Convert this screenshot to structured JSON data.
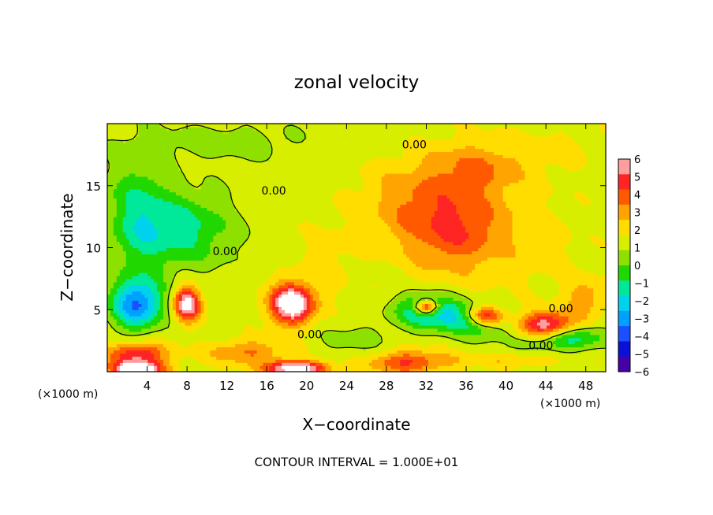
{
  "chart_data": {
    "type": "heatmap",
    "title": "zonal velocity",
    "xlabel": "X−coordinate",
    "ylabel": "Z−coordinate",
    "x_unit": "(×1000 m)",
    "z_unit": "(×1000 m)",
    "xlim": [
      0,
      50
    ],
    "zlim": [
      0,
      20
    ],
    "x_ticks": [
      4,
      8,
      12,
      16,
      20,
      24,
      28,
      32,
      36,
      40,
      44,
      48
    ],
    "z_ticks": [
      5,
      10,
      15
    ],
    "colorbar": {
      "ticks": [
        "6",
        "5",
        "4",
        "3",
        "2",
        "1",
        "0",
        "−1",
        "−2",
        "−3",
        "−4",
        "−5",
        "−6"
      ],
      "colors": [
        "#ff9e9e",
        "#ff2525",
        "#ff5a00",
        "#ffa400",
        "#ffdd00",
        "#d8ee00",
        "#8ee000",
        "#20d800",
        "#00e89a",
        "#00d2ee",
        "#00a0ff",
        "#1a50ff",
        "#0a10d8",
        "#4500a8"
      ]
    },
    "contour_labels": [
      {
        "text": "0.00",
        "x": 30.8,
        "z": 18.0
      },
      {
        "text": "0.00",
        "x": 16.7,
        "z": 14.3
      },
      {
        "text": "0.00",
        "x": 11.8,
        "z": 9.4
      },
      {
        "text": "0.00",
        "x": 20.3,
        "z": 2.7
      },
      {
        "text": "0.00",
        "x": 45.5,
        "z": 4.8
      },
      {
        "text": "0.00",
        "x": 43.5,
        "z": 1.8
      }
    ],
    "footer": "CONTOUR INTERVAL = 1.000E+01"
  }
}
